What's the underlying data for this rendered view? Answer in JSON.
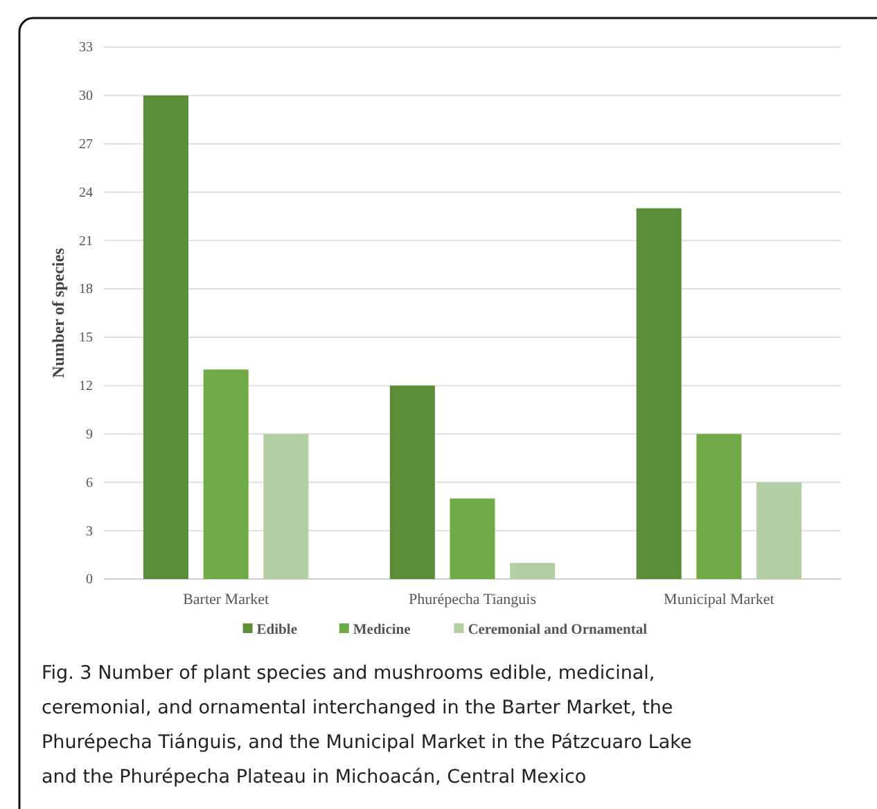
{
  "chart_data": {
    "type": "bar",
    "ylabel": "Number of species",
    "categories": [
      "Barter Market",
      "Phurépecha Tianguis",
      "Municipal Market"
    ],
    "series": [
      {
        "name": "Edible",
        "color": "#5b8c37",
        "values": [
          30,
          12,
          23
        ]
      },
      {
        "name": "Medicine",
        "color": "#70aa46",
        "values": [
          13,
          5,
          9
        ]
      },
      {
        "name": "Ceremonial and Ornamental",
        "color": "#b3cfa4",
        "values": [
          9,
          1,
          6
        ]
      }
    ],
    "ylim": [
      0,
      33
    ],
    "yticks": [
      0,
      3,
      6,
      9,
      12,
      15,
      18,
      21,
      24,
      27,
      30,
      33
    ],
    "grid": "y",
    "legend": "bottom",
    "annotations": [
      "Fig. 3 Number of plant species and mushrooms edible, medicinal, ceremonial, and ornamental interchanged in the Barter Market, the Phurépecha Tiánguis, and the Municipal Market in the Pátzcuaro Lake and the Phurépecha Plateau in Michoacán, Central Mexico"
    ]
  }
}
